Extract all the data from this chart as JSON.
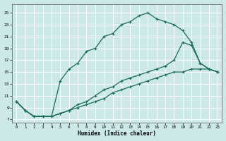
{
  "xlabel": "Humidex (Indice chaleur)",
  "bg_color": "#cce8e8",
  "grid_color": "#ffffff",
  "line_color": "#1a6b5a",
  "xlim": [
    -0.5,
    23.5
  ],
  "ylim": [
    6.5,
    26.5
  ],
  "xticks": [
    0,
    1,
    2,
    3,
    4,
    5,
    6,
    7,
    8,
    9,
    10,
    11,
    12,
    13,
    14,
    15,
    16,
    17,
    18,
    19,
    20,
    21,
    22,
    23
  ],
  "yticks": [
    7,
    9,
    11,
    13,
    15,
    17,
    19,
    21,
    23,
    25
  ],
  "line1_x": [
    0,
    1,
    2,
    3,
    4,
    5,
    6,
    7,
    8,
    9,
    10,
    11,
    12,
    13,
    14,
    15,
    16,
    17,
    18,
    19,
    20,
    21,
    22,
    23
  ],
  "line1_y": [
    10.0,
    8.5,
    7.5,
    7.5,
    7.5,
    13.5,
    15.5,
    16.5,
    18.5,
    19.0,
    21.0,
    21.5,
    23.0,
    23.5,
    24.5,
    25.0,
    24.0,
    23.5,
    23.0,
    22.0,
    20.0,
    16.5,
    15.5,
    15.0
  ],
  "line2_x": [
    0,
    1,
    2,
    3,
    4,
    5,
    6,
    7,
    8,
    9,
    10,
    11,
    12,
    13,
    14,
    15,
    16,
    17,
    18,
    19,
    20,
    21,
    22,
    23
  ],
  "line2_y": [
    10.0,
    8.5,
    7.5,
    7.5,
    7.5,
    8.0,
    8.5,
    9.0,
    9.5,
    10.0,
    10.5,
    11.5,
    12.0,
    12.5,
    13.0,
    13.5,
    14.0,
    14.5,
    15.0,
    15.0,
    15.5,
    15.5,
    15.5,
    15.0
  ],
  "line3_x": [
    0,
    1,
    2,
    3,
    4,
    5,
    6,
    7,
    8,
    9,
    10,
    11,
    12,
    13,
    14,
    15,
    16,
    17,
    18,
    19,
    20,
    21,
    22,
    23
  ],
  "line3_y": [
    10.0,
    8.5,
    7.5,
    7.5,
    7.5,
    8.0,
    8.5,
    9.5,
    10.0,
    11.0,
    12.0,
    12.5,
    13.5,
    14.0,
    14.5,
    15.0,
    15.5,
    16.0,
    17.0,
    20.0,
    19.5,
    16.5,
    15.5,
    15.0
  ]
}
